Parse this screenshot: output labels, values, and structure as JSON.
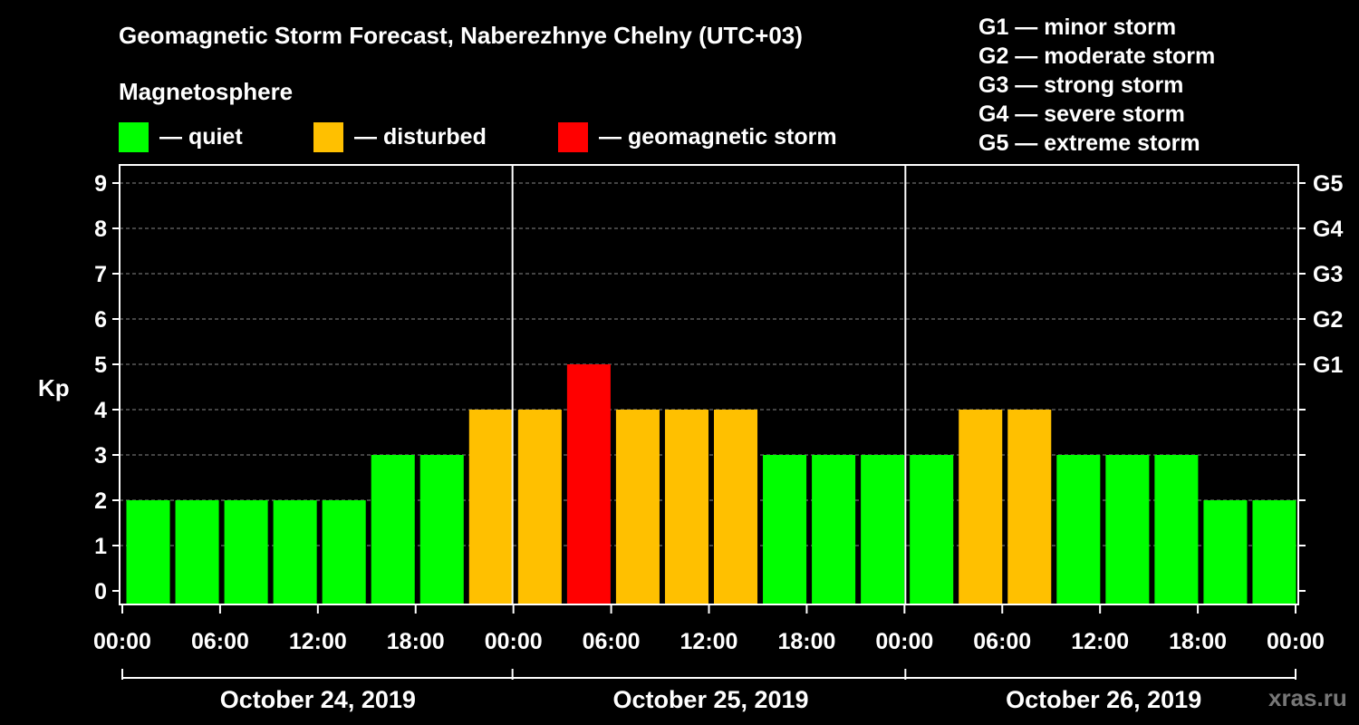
{
  "title": "Geomagnetic Storm Forecast, Naberezhnye Chelny (UTC+03)",
  "subtitle": "Magnetosphere",
  "legend": [
    {
      "label": "— quiet",
      "color": "#00ff00"
    },
    {
      "label": "— disturbed",
      "color": "#ffc000"
    },
    {
      "label": "— geomagnetic storm",
      "color": "#ff0000"
    }
  ],
  "g_scale_legend": [
    "G1 — minor storm",
    "G2 — moderate storm",
    "G3 — strong storm",
    "G4 — severe storm",
    "G5 — extreme storm"
  ],
  "watermark": "xras.ru",
  "chart_data": {
    "type": "bar",
    "ylabel": "Kp",
    "ylim": [
      0,
      9
    ],
    "yticks": [
      "0",
      "1",
      "2",
      "3",
      "4",
      "5",
      "6",
      "7",
      "8",
      "9"
    ],
    "right_axis": [
      {
        "label": "G1",
        "kp": 5
      },
      {
        "label": "G2",
        "kp": 6
      },
      {
        "label": "G3",
        "kp": 7
      },
      {
        "label": "G4",
        "kp": 8
      },
      {
        "label": "G5",
        "kp": 9
      }
    ],
    "xtick_labels": [
      "00:00",
      "06:00",
      "12:00",
      "18:00",
      "00:00",
      "06:00",
      "12:00",
      "18:00",
      "00:00",
      "06:00",
      "12:00",
      "18:00",
      "00:00"
    ],
    "days": [
      "October 24, 2019",
      "October 25, 2019",
      "October 26, 2019"
    ],
    "bar_interval_hours": 3,
    "values": [
      2,
      2,
      2,
      2,
      2,
      3,
      3,
      4,
      4,
      5,
      4,
      4,
      4,
      3,
      3,
      3,
      3,
      4,
      4,
      3,
      3,
      3,
      2,
      2
    ],
    "colors": {
      "quiet": "#00ff00",
      "disturbed": "#ffc000",
      "storm": "#ff0000"
    },
    "grid": "dashed horizontal"
  }
}
